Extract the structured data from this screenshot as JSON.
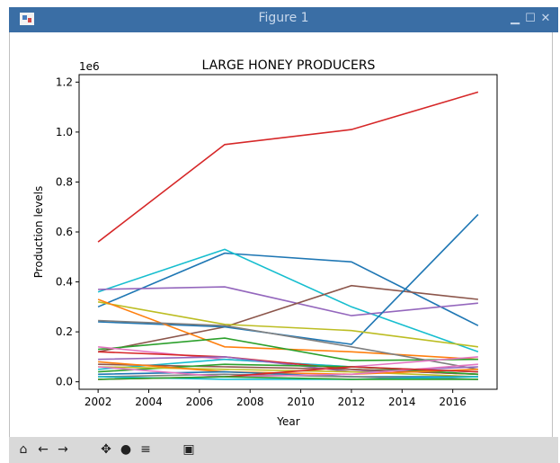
{
  "window": {
    "title": "Figure 1",
    "buttons": [
      "minimize",
      "maximize",
      "close"
    ]
  },
  "chart_data": {
    "type": "line",
    "title": "LARGE HONEY PRODUCERS",
    "xlabel": "Year",
    "ylabel": "Production levels",
    "y_offset_label": "1e6",
    "xlim": [
      2001.25,
      2017.75
    ],
    "ylim": [
      -0.03,
      1.23
    ],
    "x_ticks": [
      2002,
      2004,
      2006,
      2008,
      2010,
      2012,
      2014,
      2016
    ],
    "y_ticks": [
      0.0,
      0.2,
      0.4,
      0.6,
      0.8,
      1.0,
      1.2
    ],
    "y_tick_labels": [
      "0.0",
      "0.2",
      "0.4",
      "0.6",
      "0.8",
      "1.0",
      "1.2"
    ],
    "x": [
      2002,
      2007,
      2012,
      2017
    ],
    "series": [
      {
        "color": "#d62728",
        "values": [
          0.56,
          0.95,
          1.01,
          1.16
        ]
      },
      {
        "color": "#1f77b4",
        "values": [
          0.3,
          0.515,
          0.48,
          0.225
        ]
      },
      {
        "color": "#17becf",
        "values": [
          0.36,
          0.53,
          0.3,
          0.12
        ]
      },
      {
        "color": "#9467bd",
        "values": [
          0.37,
          0.38,
          0.265,
          0.315
        ]
      },
      {
        "color": "#8c564b",
        "values": [
          0.12,
          0.22,
          0.385,
          0.33
        ]
      },
      {
        "color": "#1f77b4",
        "values": [
          0.24,
          0.22,
          0.15,
          0.67
        ]
      },
      {
        "color": "#bcbd22",
        "values": [
          0.32,
          0.23,
          0.205,
          0.14
        ]
      },
      {
        "color": "#ff7f0e",
        "values": [
          0.33,
          0.14,
          0.12,
          0.09
        ]
      },
      {
        "color": "#2ca02c",
        "values": [
          0.13,
          0.175,
          0.085,
          0.09
        ]
      },
      {
        "color": "#7f7f7f",
        "values": [
          0.245,
          0.225,
          0.14,
          0.05
        ]
      },
      {
        "color": "#e377c2",
        "values": [
          0.14,
          0.09,
          0.06,
          0.1
        ]
      },
      {
        "color": "#17becf",
        "values": [
          0.05,
          0.09,
          0.06,
          0.04
        ]
      },
      {
        "color": "#d62728",
        "values": [
          0.12,
          0.1,
          0.05,
          0.03
        ]
      },
      {
        "color": "#9467bd",
        "values": [
          0.09,
          0.1,
          0.04,
          0.06
        ]
      },
      {
        "color": "#8c564b",
        "values": [
          0.07,
          0.06,
          0.05,
          0.03
        ]
      },
      {
        "color": "#2ca02c",
        "values": [
          0.04,
          0.07,
          0.06,
          0.03
        ]
      },
      {
        "color": "#bcbd22",
        "values": [
          0.06,
          0.05,
          0.04,
          0.02
        ]
      },
      {
        "color": "#ff7f0e",
        "values": [
          0.08,
          0.04,
          0.03,
          0.05
        ]
      },
      {
        "color": "#1f77b4",
        "values": [
          0.03,
          0.04,
          0.02,
          0.02
        ]
      },
      {
        "color": "#7f7f7f",
        "values": [
          0.02,
          0.03,
          0.02,
          0.01
        ]
      },
      {
        "color": "#e377c2",
        "values": [
          0.06,
          0.02,
          0.03,
          0.07
        ]
      },
      {
        "color": "#d62728",
        "values": [
          0.01,
          0.02,
          0.06,
          0.04
        ]
      },
      {
        "color": "#17becf",
        "values": [
          0.02,
          0.01,
          0.01,
          0.02
        ]
      },
      {
        "color": "#2ca02c",
        "values": [
          0.01,
          0.02,
          0.01,
          0.01
        ]
      }
    ]
  },
  "toolbar": {
    "tools": [
      "home-icon",
      "back-icon",
      "forward-icon",
      "pan-icon",
      "zoom-icon",
      "configure-icon",
      "save-icon"
    ]
  }
}
